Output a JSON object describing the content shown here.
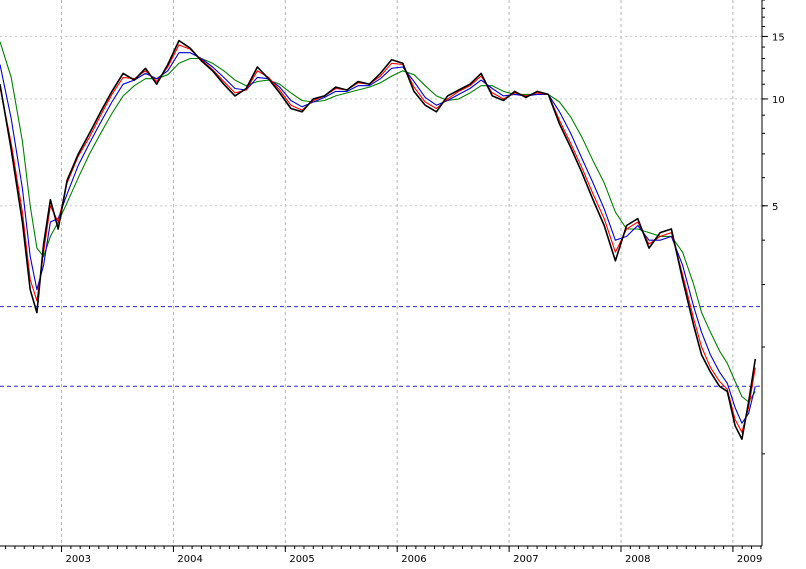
{
  "chart_data": {
    "type": "line",
    "y_scale": "log",
    "ylim": [
      0.55,
      19
    ],
    "xlim": [
      2002.45,
      2009.26
    ],
    "grid": true,
    "yticks": [
      {
        "value": 15,
        "label": "15"
      },
      {
        "value": 10,
        "label": "10"
      },
      {
        "value": 5,
        "label": "5"
      }
    ],
    "xticks": [
      {
        "value": 2003,
        "label": "2003"
      },
      {
        "value": 2004,
        "label": "2004"
      },
      {
        "value": 2005,
        "label": "2005"
      },
      {
        "value": 2006,
        "label": "2006"
      },
      {
        "value": 2007,
        "label": "2007"
      },
      {
        "value": 2008,
        "label": "2008"
      },
      {
        "value": 2009,
        "label": "2009"
      }
    ],
    "reference_lines": [
      2.6,
      1.55
    ],
    "x": [
      2002.45,
      2002.55,
      2002.65,
      2002.72,
      2002.78,
      2002.84,
      2002.9,
      2002.97,
      2003.05,
      2003.15,
      2003.25,
      2003.35,
      2003.45,
      2003.55,
      2003.65,
      2003.75,
      2003.85,
      2003.95,
      2004.05,
      2004.15,
      2004.25,
      2004.35,
      2004.45,
      2004.55,
      2004.65,
      2004.75,
      2004.85,
      2004.95,
      2005.05,
      2005.15,
      2005.25,
      2005.35,
      2005.45,
      2005.55,
      2005.65,
      2005.75,
      2005.85,
      2005.95,
      2006.05,
      2006.15,
      2006.25,
      2006.35,
      2006.45,
      2006.55,
      2006.65,
      2006.75,
      2006.85,
      2006.95,
      2007.05,
      2007.15,
      2007.25,
      2007.35,
      2007.45,
      2007.55,
      2007.65,
      2007.75,
      2007.85,
      2007.95,
      2008.05,
      2008.15,
      2008.25,
      2008.35,
      2008.45,
      2008.55,
      2008.65,
      2008.72,
      2008.8,
      2008.88,
      2008.95,
      2009.02,
      2009.08,
      2009.14,
      2009.2
    ],
    "series": [
      {
        "color": "#000000",
        "values": [
          11.0,
          7.2,
          4.5,
          2.9,
          2.5,
          3.9,
          5.2,
          4.3,
          5.9,
          7.0,
          8.0,
          9.2,
          10.5,
          11.8,
          11.3,
          12.2,
          11.0,
          12.5,
          14.6,
          13.9,
          12.8,
          12.0,
          11.0,
          10.2,
          10.7,
          12.3,
          11.4,
          10.4,
          9.4,
          9.2,
          10.0,
          10.2,
          10.8,
          10.6,
          11.2,
          11.0,
          11.8,
          12.9,
          12.6,
          10.5,
          9.6,
          9.2,
          10.2,
          10.6,
          11.0,
          11.8,
          10.2,
          9.9,
          10.5,
          10.1,
          10.5,
          10.3,
          8.5,
          7.3,
          6.2,
          5.2,
          4.4,
          3.5,
          4.4,
          4.6,
          3.8,
          4.2,
          4.3,
          3.1,
          2.3,
          1.9,
          1.7,
          1.55,
          1.5,
          1.2,
          1.1,
          1.4,
          1.85
        ]
      },
      {
        "color": "#ff0000",
        "values": [
          10.8,
          7.5,
          4.8,
          3.1,
          2.7,
          3.7,
          5.0,
          4.5,
          5.8,
          6.9,
          7.8,
          9.0,
          10.3,
          11.5,
          11.4,
          12.0,
          11.2,
          12.3,
          14.2,
          13.8,
          12.9,
          12.1,
          11.2,
          10.4,
          10.6,
          12.0,
          11.5,
          10.6,
          9.6,
          9.3,
          9.9,
          10.2,
          10.7,
          10.6,
          11.1,
          11.0,
          11.6,
          12.6,
          12.5,
          10.8,
          9.8,
          9.4,
          10.0,
          10.5,
          10.9,
          11.6,
          10.4,
          10.0,
          10.4,
          10.2,
          10.4,
          10.3,
          8.7,
          7.5,
          6.4,
          5.4,
          4.6,
          3.7,
          4.3,
          4.5,
          3.9,
          4.1,
          4.2,
          3.2,
          2.4,
          2.0,
          1.75,
          1.6,
          1.52,
          1.25,
          1.15,
          1.35,
          1.75
        ]
      },
      {
        "color": "#0000cc",
        "values": [
          12.5,
          8.8,
          5.6,
          3.6,
          2.9,
          3.4,
          4.5,
          4.6,
          5.4,
          6.5,
          7.5,
          8.6,
          9.8,
          11.0,
          11.3,
          11.8,
          11.4,
          12.0,
          13.5,
          13.5,
          13.0,
          12.3,
          11.5,
          10.7,
          10.6,
          11.5,
          11.4,
          10.8,
          9.9,
          9.5,
          9.8,
          10.1,
          10.5,
          10.5,
          10.9,
          10.9,
          11.4,
          12.2,
          12.3,
          11.2,
          10.1,
          9.6,
          9.9,
          10.3,
          10.7,
          11.3,
          10.7,
          10.2,
          10.3,
          10.2,
          10.3,
          10.3,
          9.2,
          8.0,
          6.8,
          5.8,
          4.9,
          4.0,
          4.1,
          4.4,
          4.0,
          4.0,
          4.1,
          3.4,
          2.6,
          2.2,
          1.9,
          1.7,
          1.58,
          1.35,
          1.22,
          1.3,
          1.55
        ]
      },
      {
        "color": "#008000",
        "values": [
          14.5,
          11.5,
          7.6,
          5.0,
          3.8,
          3.6,
          4.1,
          4.5,
          5.1,
          6.0,
          7.0,
          8.0,
          9.1,
          10.2,
          10.9,
          11.4,
          11.4,
          11.7,
          12.6,
          13.0,
          13.0,
          12.6,
          12.0,
          11.3,
          10.9,
          11.2,
          11.3,
          11.0,
          10.4,
          9.9,
          9.8,
          9.9,
          10.2,
          10.4,
          10.6,
          10.8,
          11.1,
          11.6,
          12.0,
          11.7,
          10.9,
          10.2,
          9.9,
          10.0,
          10.4,
          10.9,
          10.9,
          10.5,
          10.3,
          10.3,
          10.3,
          10.3,
          9.8,
          8.9,
          7.8,
          6.7,
          5.8,
          4.8,
          4.3,
          4.3,
          4.2,
          4.1,
          4.1,
          3.7,
          3.0,
          2.5,
          2.2,
          1.95,
          1.8,
          1.6,
          1.45,
          1.4,
          1.5
        ]
      }
    ]
  }
}
